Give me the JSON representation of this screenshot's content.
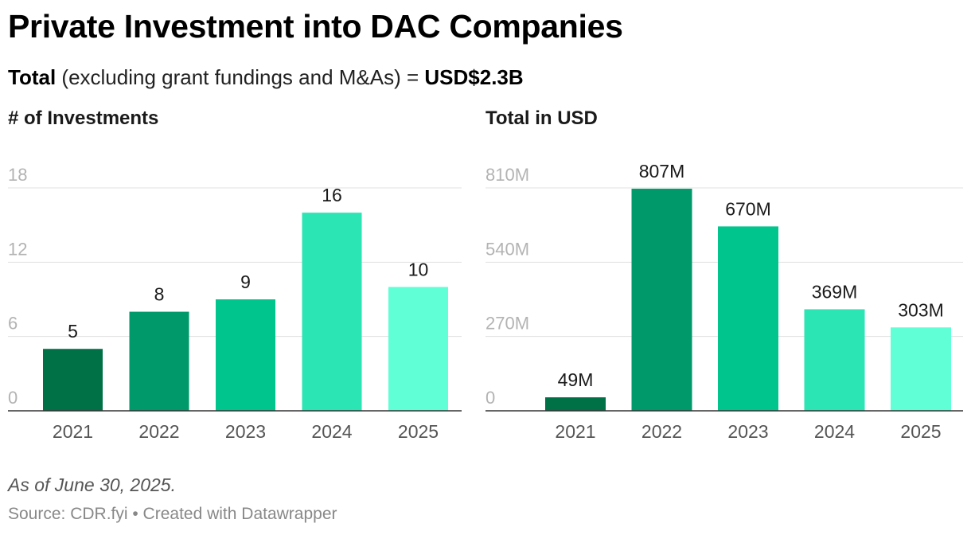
{
  "title": "Private Investment into DAC Companies",
  "subtitle": {
    "lead": "Total",
    "middle": " (excluding grant fundings and M&As) = ",
    "total": "USD$2.3B"
  },
  "note": "As of June 30, 2025.",
  "source": "Source: CDR.fyi • Created with Datawrapper",
  "colors": [
    "#007146",
    "#009a6a",
    "#00c58c",
    "#2be6b4",
    "#60ffd6"
  ],
  "chart_data": [
    {
      "type": "bar",
      "title": "# of Investments",
      "categories": [
        "2021",
        "2022",
        "2023",
        "2024",
        "2025"
      ],
      "values": [
        5,
        8,
        9,
        16,
        10
      ],
      "value_labels": [
        "5",
        "8",
        "9",
        "16",
        "10"
      ],
      "yticks": [
        0,
        6,
        12,
        18
      ],
      "ytick_labels": [
        "0",
        "6",
        "12",
        "18"
      ],
      "ylim": [
        0,
        18
      ],
      "xlabel": "",
      "ylabel": "",
      "grid": true
    },
    {
      "type": "bar",
      "title": "Total in USD",
      "categories": [
        "2021",
        "2022",
        "2023",
        "2024",
        "2025"
      ],
      "values": [
        49,
        807,
        670,
        369,
        303
      ],
      "value_labels": [
        "49M",
        "807M",
        "670M",
        "369M",
        "303M"
      ],
      "yticks": [
        0,
        270,
        540,
        810
      ],
      "ytick_labels": [
        "0",
        "270M",
        "540M",
        "810M"
      ],
      "ylim": [
        0,
        810
      ],
      "xlabel": "",
      "ylabel": "",
      "grid": true
    }
  ]
}
